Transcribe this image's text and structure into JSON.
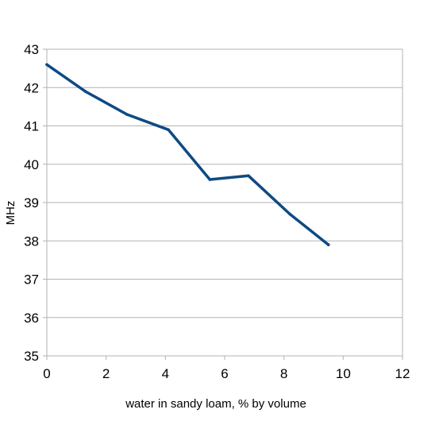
{
  "chart_data": {
    "type": "line",
    "title": "",
    "xlabel": "water in sandy loam, % by volume",
    "ylabel": "MHz",
    "xlim": [
      0,
      12
    ],
    "ylim": [
      35,
      43
    ],
    "x_ticks": [
      "0",
      "2",
      "4",
      "6",
      "8",
      "10",
      "12"
    ],
    "y_ticks": [
      "35",
      "36",
      "37",
      "38",
      "39",
      "40",
      "41",
      "42",
      "43"
    ],
    "grid": "horizontal",
    "legend": "none",
    "series": [
      {
        "color": "#0e4a84",
        "x": [
          0,
          1.3,
          2.7,
          4.1,
          5.5,
          6.8,
          8.2,
          9.5
        ],
        "y": [
          42.6,
          41.9,
          41.3,
          40.9,
          39.6,
          39.7,
          38.7,
          37.9
        ]
      }
    ],
    "colors": {
      "line": "#0e4a84",
      "grid": "#b3b3b3",
      "axis": "#b3b3b3"
    }
  }
}
